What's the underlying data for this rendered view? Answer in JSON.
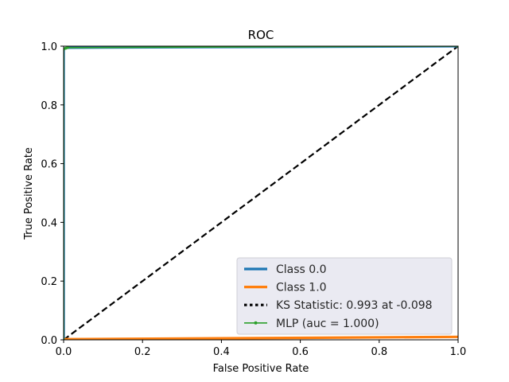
{
  "chart_data": {
    "type": "line",
    "title": "ROC",
    "xlabel": "False Positive Rate",
    "ylabel": "True Positive Rate",
    "xlim": [
      0,
      1
    ],
    "ylim": [
      0,
      1
    ],
    "x_ticks": [
      "0.0",
      "0.2",
      "0.4",
      "0.6",
      "0.8",
      "1.0"
    ],
    "y_ticks": [
      "0.0",
      "0.2",
      "0.4",
      "0.6",
      "0.8",
      "1.0"
    ],
    "grid": false,
    "legend_position": "lower-right",
    "series": [
      {
        "name": "Class 0.0",
        "color": "#1f77b4",
        "style": "solid",
        "x": [
          0.0,
          0.0,
          0.005,
          0.01,
          1.0
        ],
        "y": [
          0.0,
          0.99,
          0.993,
          0.995,
          1.0
        ]
      },
      {
        "name": "Class 1.0",
        "color": "#ff7f0e",
        "style": "solid",
        "x": [
          0.0,
          0.005,
          1.0
        ],
        "y": [
          0.0,
          0.002,
          0.01
        ]
      },
      {
        "name": "KS Statistic: 0.993 at -0.098",
        "color": "#000000",
        "style": "dotted",
        "x": [],
        "y": []
      },
      {
        "name": "MLP (auc = 1.000)",
        "color": "#2ca02c",
        "style": "solid-marker",
        "x": [
          0.0,
          0.0,
          0.005,
          0.01,
          1.0
        ],
        "y": [
          0.0,
          0.99,
          0.993,
          0.995,
          1.0
        ]
      }
    ],
    "reference_line": {
      "color": "#000000",
      "style": "dashed",
      "x": [
        0,
        1
      ],
      "y": [
        0,
        1
      ]
    }
  }
}
